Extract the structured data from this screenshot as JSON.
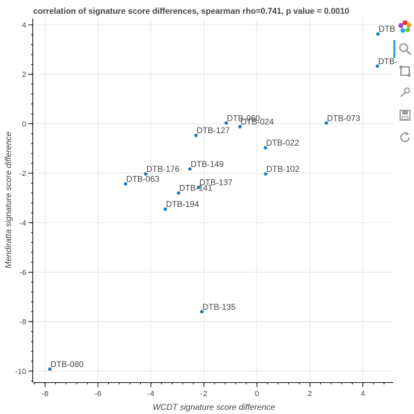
{
  "chart_data": {
    "type": "scatter",
    "title": "correlation of signature score differences, spearman rho=0.741, p value = 0.0010",
    "xlabel": "WCDT signature score difference",
    "ylabel": "Mendiratta signature score difference",
    "xlim": [
      -8.45,
      5.15
    ],
    "ylim": [
      -10.45,
      4.25
    ],
    "xticks": [
      -8,
      -6,
      -4,
      -2,
      0,
      2,
      4
    ],
    "yticks": [
      -10,
      -8,
      -6,
      -4,
      -2,
      0,
      2,
      4
    ],
    "grid": true,
    "point_color": "#1f77b4",
    "points": [
      {
        "label": "DTB-080",
        "x": -7.82,
        "y": -9.92
      },
      {
        "label": "DTB-135",
        "x": -2.08,
        "y": -7.6
      },
      {
        "label": "DTB-194",
        "x": -3.46,
        "y": -3.45
      },
      {
        "label": "DTB-141",
        "x": -2.96,
        "y": -2.8
      },
      {
        "label": "DTB-137",
        "x": -2.2,
        "y": -2.57
      },
      {
        "label": "DTB-063",
        "x": -4.96,
        "y": -2.43
      },
      {
        "label": "DTB-176",
        "x": -4.2,
        "y": -2.03
      },
      {
        "label": "DTB-149",
        "x": -2.53,
        "y": -1.83
      },
      {
        "label": "DTB-102",
        "x": 0.33,
        "y": -2.03
      },
      {
        "label": "DTB-022",
        "x": 0.32,
        "y": -0.97
      },
      {
        "label": "DTB-127",
        "x": -2.3,
        "y": -0.47
      },
      {
        "label": "DTB-060",
        "x": -1.16,
        "y": 0.03
      },
      {
        "label": "DTB-024",
        "x": -0.64,
        "y": -0.12
      },
      {
        "label": "DTB-073",
        "x": 2.62,
        "y": 0.03
      },
      {
        "label": "DTB-",
        "x": 4.55,
        "y": 2.33
      },
      {
        "label": "DTB",
        "x": 4.57,
        "y": 3.63
      }
    ]
  },
  "toolbar": {
    "icons": [
      "bokeh-logo-icon",
      "box-zoom-icon",
      "box-select-icon",
      "lasso-icon",
      "save-icon",
      "reset-icon"
    ]
  }
}
